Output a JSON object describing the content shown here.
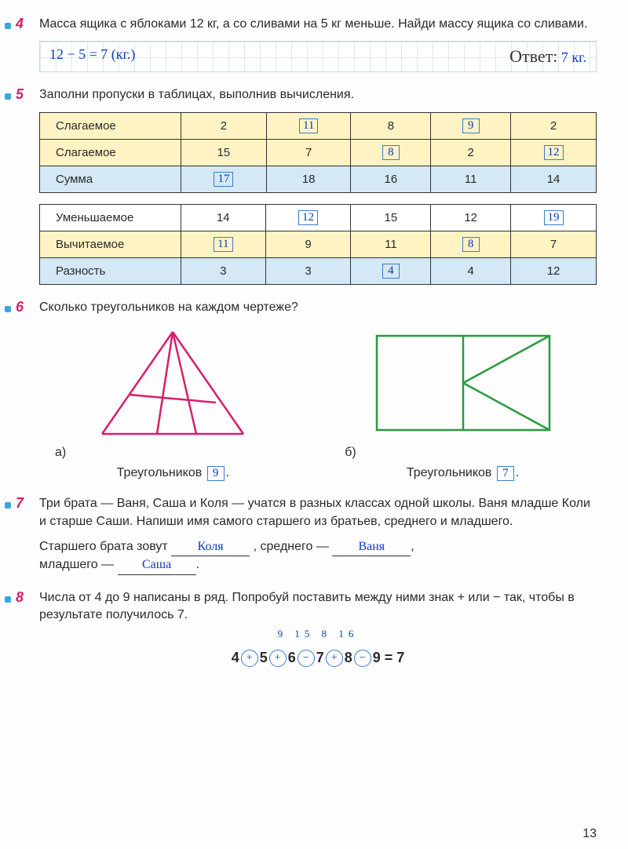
{
  "p4": {
    "num": "4",
    "text": "Масса ящика с яблоками 12 кг, а со сливами на 5 кг меньше. Найди массу ящика со сливами.",
    "work": "12 − 5 = 7 (кг.)",
    "answer_label": "Ответ:",
    "answer_value": "7 кг."
  },
  "p5": {
    "num": "5",
    "text": "Заполни пропуски в таблицах, выполнив вычисления.",
    "table1": {
      "labels": [
        "Слагаемое",
        "Слагаемое",
        "Сумма"
      ],
      "cols": [
        {
          "r0": {
            "v": "2"
          },
          "r1": {
            "v": "15"
          },
          "r2": {
            "v": "17",
            "ans": true
          }
        },
        {
          "r0": {
            "v": "11",
            "ans": true
          },
          "r1": {
            "v": "7"
          },
          "r2": {
            "v": "18"
          }
        },
        {
          "r0": {
            "v": "8"
          },
          "r1": {
            "v": "8",
            "ans": true
          },
          "r2": {
            "v": "16"
          }
        },
        {
          "r0": {
            "v": "9",
            "ans": true
          },
          "r1": {
            "v": "2"
          },
          "r2": {
            "v": "11"
          }
        },
        {
          "r0": {
            "v": "2"
          },
          "r1": {
            "v": "12",
            "ans": true
          },
          "r2": {
            "v": "14"
          }
        }
      ],
      "row_colors": [
        "row-yellow",
        "row-yellow",
        "row-blue"
      ]
    },
    "table2": {
      "labels": [
        "Уменьшаемое",
        "Вычитаемое",
        "Разность"
      ],
      "cols": [
        {
          "r0": {
            "v": "14"
          },
          "r1": {
            "v": "11",
            "ans": true
          },
          "r2": {
            "v": "3"
          }
        },
        {
          "r0": {
            "v": "12",
            "ans": true
          },
          "r1": {
            "v": "9"
          },
          "r2": {
            "v": "3"
          }
        },
        {
          "r0": {
            "v": "15"
          },
          "r1": {
            "v": "11"
          },
          "r2": {
            "v": "4",
            "ans": true
          }
        },
        {
          "r0": {
            "v": "12"
          },
          "r1": {
            "v": "8",
            "ans": true
          },
          "r2": {
            "v": "4"
          }
        },
        {
          "r0": {
            "v": "19",
            "ans": true
          },
          "r1": {
            "v": "7"
          },
          "r2": {
            "v": "12"
          }
        }
      ],
      "row_colors": [
        "row-white",
        "row-yellow",
        "row-blue"
      ]
    }
  },
  "p6": {
    "num": "6",
    "text": "Сколько треугольников на каждом чертеже?",
    "a_label": "а)",
    "b_label": "б)",
    "caption": "Треугольников",
    "a_answer": "9",
    "b_answer": "7",
    "triangle_color": "#d81e6e",
    "rect_color": "#2a9a3f"
  },
  "p7": {
    "num": "7",
    "text": "Три брата — Ваня, Саша и Коля — учатся в разных классах одной школы. Ваня младше Коли и старше Саши. Напиши имя самого старшего из братьев, среднего и младшего.",
    "line1_prefix": "Старшего брата зовут",
    "ans1": "Коля",
    "line1_mid": ", среднего —",
    "ans2": "Ваня",
    "line2_prefix": "младшего —",
    "ans3": "Саша"
  },
  "p8": {
    "num": "8",
    "text": "Числа от 4 до 9 написаны в ряд. Попробуй поставить между ними знак + или − так, чтобы в результате получилось 7.",
    "partials": "9   15   8   16",
    "nums": [
      "4",
      "5",
      "6",
      "7",
      "8",
      "9"
    ],
    "ops": [
      "+",
      "+",
      "−",
      "+",
      "−"
    ],
    "result_eq": "= 7"
  },
  "page_number": "13"
}
